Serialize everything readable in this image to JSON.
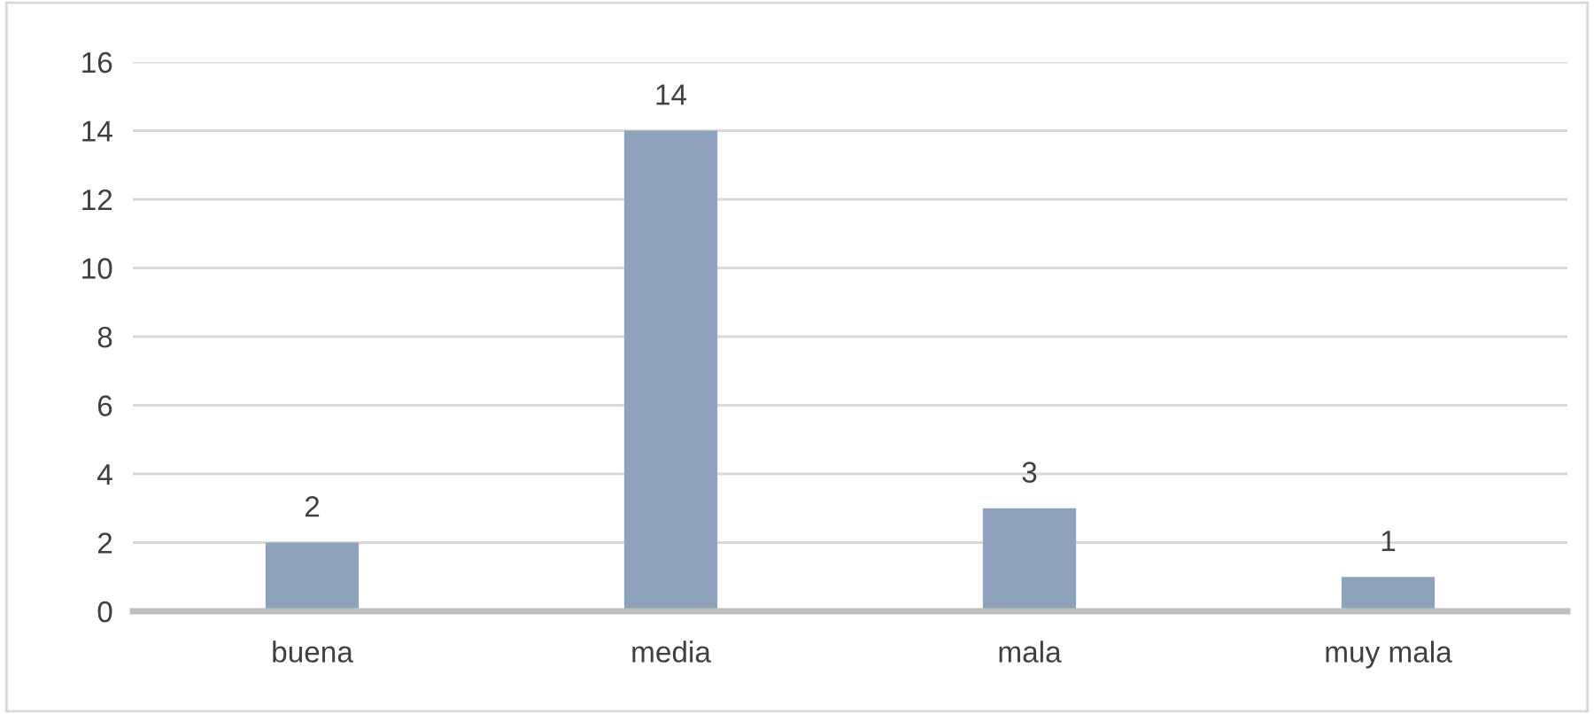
{
  "chart_data": {
    "type": "bar",
    "categories": [
      "buena",
      "media",
      "mala",
      "muy mala"
    ],
    "values": [
      2,
      14,
      3,
      1
    ],
    "color": "#8ea2bb",
    "ylim": [
      0,
      16
    ],
    "yticks": [
      0,
      2,
      4,
      6,
      8,
      10,
      12,
      14,
      16
    ],
    "grid": "y",
    "data_labels": true
  }
}
